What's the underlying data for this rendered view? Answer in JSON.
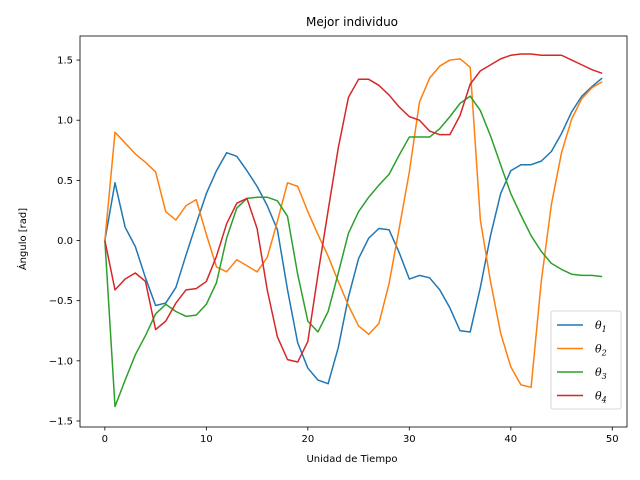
{
  "chart_data": {
    "type": "line",
    "title": "Mejor individuo",
    "xlabel": "Unidad de Tiempo",
    "ylabel": "Ángulo [rad]",
    "xlim": [
      -2.45,
      51.45
    ],
    "ylim": [
      -1.55,
      1.7
    ],
    "xticks": [
      0,
      10,
      20,
      30,
      40,
      50
    ],
    "yticks": [
      -1.5,
      -1.0,
      -0.5,
      0.0,
      0.5,
      1.0,
      1.5
    ],
    "xtick_labels": [
      "0",
      "10",
      "20",
      "30",
      "40",
      "50"
    ],
    "ytick_labels": [
      "−1.5",
      "−1.0",
      "−0.5",
      "0.0",
      "0.5",
      "1.0",
      "1.5"
    ],
    "grid": false,
    "legend_position": "lower-right",
    "x": [
      0,
      1,
      2,
      3,
      4,
      5,
      6,
      7,
      8,
      9,
      10,
      11,
      12,
      13,
      14,
      15,
      16,
      17,
      18,
      19,
      20,
      21,
      22,
      23,
      24,
      25,
      26,
      27,
      28,
      29,
      30,
      31,
      32,
      33,
      34,
      35,
      36,
      37,
      38,
      39,
      40,
      41,
      42,
      43,
      44,
      45,
      46,
      47,
      48,
      49
    ],
    "series": [
      {
        "name": "θ",
        "subscript": "1",
        "color": "#1f77b4",
        "values": [
          0.0,
          0.48,
          0.11,
          -0.05,
          -0.31,
          -0.54,
          -0.52,
          -0.39,
          -0.12,
          0.14,
          0.39,
          0.58,
          0.73,
          0.7,
          0.58,
          0.45,
          0.29,
          0.09,
          -0.41,
          -0.85,
          -1.06,
          -1.16,
          -1.19,
          -0.89,
          -0.47,
          -0.15,
          0.02,
          0.1,
          0.09,
          -0.1,
          -0.32,
          -0.29,
          -0.31,
          -0.41,
          -0.56,
          -0.75,
          -0.76,
          -0.39,
          0.04,
          0.39,
          0.58,
          0.63,
          0.63,
          0.66,
          0.74,
          0.89,
          1.07,
          1.2,
          1.28,
          1.35
        ]
      },
      {
        "name": "θ",
        "subscript": "2",
        "color": "#ff7f0e",
        "values": [
          0.0,
          0.9,
          0.81,
          0.72,
          0.65,
          0.57,
          0.24,
          0.17,
          0.29,
          0.34,
          0.05,
          -0.22,
          -0.26,
          -0.16,
          -0.21,
          -0.26,
          -0.14,
          0.16,
          0.48,
          0.45,
          0.24,
          0.05,
          -0.13,
          -0.34,
          -0.54,
          -0.71,
          -0.78,
          -0.69,
          -0.36,
          0.1,
          0.57,
          1.15,
          1.35,
          1.45,
          1.5,
          1.51,
          1.44,
          0.17,
          -0.34,
          -0.77,
          -1.05,
          -1.2,
          -1.22,
          -0.34,
          0.3,
          0.73,
          1.01,
          1.18,
          1.27,
          1.32
        ]
      },
      {
        "name": "θ",
        "subscript": "3",
        "color": "#2ca02c",
        "values": [
          0.0,
          -1.38,
          -1.16,
          -0.95,
          -0.79,
          -0.61,
          -0.53,
          -0.59,
          -0.63,
          -0.62,
          -0.53,
          -0.35,
          0.02,
          0.27,
          0.35,
          0.36,
          0.36,
          0.33,
          0.2,
          -0.28,
          -0.67,
          -0.76,
          -0.59,
          -0.27,
          0.06,
          0.24,
          0.36,
          0.46,
          0.55,
          0.71,
          0.86,
          0.86,
          0.86,
          0.93,
          1.03,
          1.14,
          1.2,
          1.08,
          0.87,
          0.63,
          0.39,
          0.21,
          0.04,
          -0.09,
          -0.19,
          -0.24,
          -0.28,
          -0.29,
          -0.29,
          -0.3
        ]
      },
      {
        "name": "θ",
        "subscript": "4",
        "color": "#d62728",
        "values": [
          0.0,
          -0.41,
          -0.32,
          -0.27,
          -0.34,
          -0.74,
          -0.67,
          -0.52,
          -0.41,
          -0.4,
          -0.34,
          -0.13,
          0.14,
          0.31,
          0.35,
          0.1,
          -0.41,
          -0.8,
          -0.99,
          -1.01,
          -0.84,
          -0.28,
          0.25,
          0.77,
          1.19,
          1.34,
          1.34,
          1.29,
          1.21,
          1.11,
          1.03,
          1.0,
          0.91,
          0.88,
          0.88,
          1.04,
          1.3,
          1.41,
          1.46,
          1.51,
          1.54,
          1.55,
          1.55,
          1.54,
          1.54,
          1.54,
          1.5,
          1.46,
          1.42,
          1.39
        ]
      }
    ]
  }
}
